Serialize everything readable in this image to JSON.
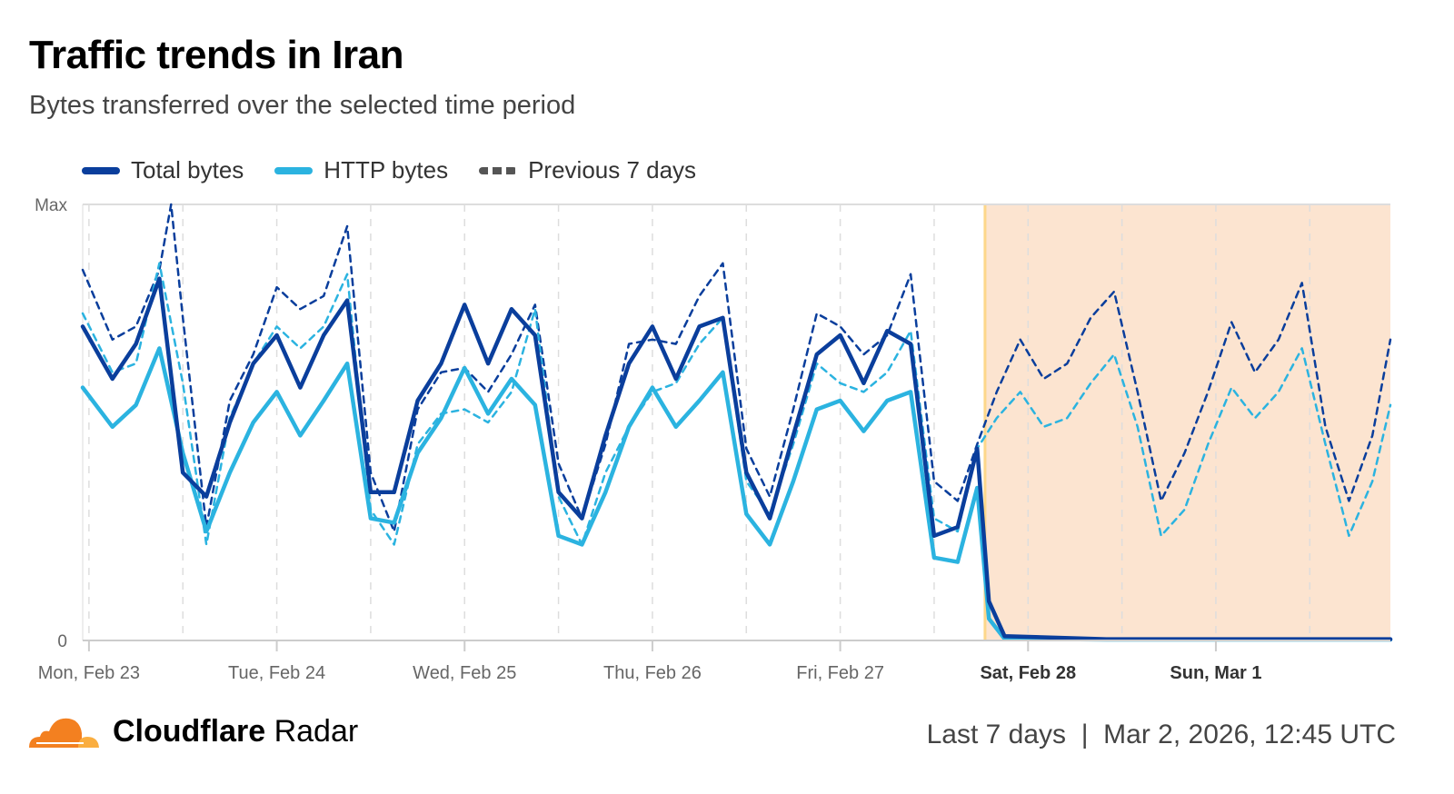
{
  "header": {
    "title": "Traffic trends in Iran",
    "subtitle": "Bytes transferred over the selected time period"
  },
  "footer": {
    "brand_bold": "Cloudflare",
    "brand_light": "Radar",
    "range": "Last 7 days",
    "separator": "|",
    "timestamp": "Mar 2, 2026, 12:45 UTC"
  },
  "chart_data": {
    "type": "line",
    "title": "Traffic trends in Iran",
    "x_unit": "hours since Mon, Feb 23 00:00 UTC",
    "xlim": [
      -0.8,
      166.3
    ],
    "ylim": [
      0,
      100
    ],
    "y_ticks": [
      {
        "value": 0,
        "label": "0"
      },
      {
        "value": 100,
        "label": "Max"
      }
    ],
    "x_ticks": [
      {
        "value": 0,
        "label": "Mon, Feb 23",
        "bold": false
      },
      {
        "value": 24,
        "label": "Tue, Feb 24",
        "bold": false
      },
      {
        "value": 48,
        "label": "Wed, Feb 25",
        "bold": false
      },
      {
        "value": 72,
        "label": "Thu, Feb 26",
        "bold": false
      },
      {
        "value": 96,
        "label": "Fri, Feb 27",
        "bold": false
      },
      {
        "value": 120,
        "label": "Sat, Feb 28",
        "bold": true
      },
      {
        "value": 144,
        "label": "Sun, Mar 1",
        "bold": true
      }
    ],
    "highlight": {
      "from": 114.5,
      "to": 166.3,
      "color": "#fce4d0",
      "edge": "#fdd78a"
    },
    "legend": "top-left",
    "series": [
      {
        "name": "Previous 7 days",
        "legend": true,
        "color": "#0a3e9c",
        "dashed": true,
        "width": 2.5,
        "points": [
          [
            -0.8,
            85
          ],
          [
            3,
            69
          ],
          [
            6,
            72
          ],
          [
            9,
            85
          ],
          [
            10.5,
            100
          ],
          [
            12,
            74
          ],
          [
            15,
            26
          ],
          [
            18,
            55
          ],
          [
            21,
            65.6
          ],
          [
            24,
            81
          ],
          [
            27,
            76
          ],
          [
            30,
            79
          ],
          [
            33,
            95
          ],
          [
            36,
            38.5
          ],
          [
            39,
            25
          ],
          [
            42,
            53
          ],
          [
            45,
            61.5
          ],
          [
            48,
            62.5
          ],
          [
            51,
            57
          ],
          [
            54,
            65.6
          ],
          [
            57,
            77
          ],
          [
            60,
            40.6
          ],
          [
            63,
            28
          ],
          [
            66,
            45
          ],
          [
            69,
            68
          ],
          [
            72,
            69
          ],
          [
            75,
            68
          ],
          [
            78,
            79
          ],
          [
            81,
            86.5
          ],
          [
            84,
            44
          ],
          [
            87,
            33
          ],
          [
            90,
            53
          ],
          [
            93,
            75
          ],
          [
            96,
            72
          ],
          [
            99,
            65.6
          ],
          [
            102,
            70
          ],
          [
            105,
            84
          ],
          [
            108,
            36.5
          ],
          [
            111,
            32
          ],
          [
            113.5,
            45
          ],
          [
            116,
            57
          ],
          [
            119,
            69
          ],
          [
            122,
            60
          ],
          [
            125,
            63.5
          ],
          [
            128,
            74
          ],
          [
            131,
            80
          ],
          [
            134,
            57
          ],
          [
            137,
            32
          ],
          [
            140,
            43
          ],
          [
            143,
            57
          ],
          [
            146,
            73
          ],
          [
            149,
            61.5
          ],
          [
            152,
            69
          ],
          [
            155,
            82
          ],
          [
            158,
            49
          ],
          [
            161,
            32
          ],
          [
            164,
            47
          ],
          [
            166.3,
            69
          ]
        ]
      },
      {
        "name": "Previous 7 days (HTTP)",
        "legend": false,
        "color": "#2bb3e0",
        "dashed": true,
        "width": 2.5,
        "points": [
          [
            -0.8,
            75
          ],
          [
            3,
            61.5
          ],
          [
            6,
            63.5
          ],
          [
            9,
            86.5
          ],
          [
            12,
            59
          ],
          [
            15,
            22
          ],
          [
            18,
            51
          ],
          [
            21,
            63.5
          ],
          [
            24,
            72
          ],
          [
            27,
            67
          ],
          [
            30,
            72
          ],
          [
            33,
            84
          ],
          [
            36,
            30
          ],
          [
            39,
            22
          ],
          [
            42,
            45
          ],
          [
            45,
            52
          ],
          [
            48,
            53
          ],
          [
            51,
            50
          ],
          [
            54,
            57
          ],
          [
            57,
            76
          ],
          [
            60,
            33
          ],
          [
            63,
            22
          ],
          [
            66,
            38.5
          ],
          [
            69,
            49
          ],
          [
            72,
            57
          ],
          [
            75,
            59
          ],
          [
            78,
            68
          ],
          [
            81,
            74
          ],
          [
            84,
            36.5
          ],
          [
            87,
            29
          ],
          [
            90,
            45
          ],
          [
            93,
            63.5
          ],
          [
            96,
            59
          ],
          [
            99,
            57
          ],
          [
            102,
            61.5
          ],
          [
            105,
            71
          ],
          [
            108,
            28
          ],
          [
            111,
            25
          ],
          [
            113.5,
            44
          ],
          [
            116,
            51
          ],
          [
            119,
            57
          ],
          [
            122,
            49
          ],
          [
            125,
            51
          ],
          [
            128,
            59
          ],
          [
            131,
            65.6
          ],
          [
            134,
            49
          ],
          [
            137,
            24
          ],
          [
            140,
            30
          ],
          [
            143,
            45
          ],
          [
            146,
            58
          ],
          [
            149,
            51
          ],
          [
            152,
            57
          ],
          [
            155,
            67
          ],
          [
            158,
            45
          ],
          [
            161,
            24
          ],
          [
            164,
            36.5
          ],
          [
            166.3,
            54
          ]
        ]
      },
      {
        "name": "HTTP bytes",
        "legend": true,
        "color": "#2bb3e0",
        "dashed": false,
        "width": 4.5,
        "points": [
          [
            -0.8,
            58
          ],
          [
            3,
            49
          ],
          [
            6,
            54
          ],
          [
            9,
            67
          ],
          [
            12,
            43
          ],
          [
            15,
            25
          ],
          [
            18,
            38.5
          ],
          [
            21,
            50
          ],
          [
            24,
            57
          ],
          [
            27,
            47
          ],
          [
            30,
            55
          ],
          [
            33,
            63.5
          ],
          [
            36,
            28
          ],
          [
            39,
            27
          ],
          [
            42,
            43
          ],
          [
            45,
            51
          ],
          [
            48,
            62.5
          ],
          [
            51,
            52
          ],
          [
            54,
            60
          ],
          [
            57,
            54
          ],
          [
            60,
            24
          ],
          [
            63,
            22
          ],
          [
            66,
            34
          ],
          [
            69,
            49
          ],
          [
            72,
            58
          ],
          [
            75,
            49
          ],
          [
            78,
            55
          ],
          [
            81,
            61.5
          ],
          [
            84,
            29
          ],
          [
            87,
            22
          ],
          [
            90,
            36.5
          ],
          [
            93,
            53
          ],
          [
            96,
            55
          ],
          [
            99,
            48
          ],
          [
            102,
            55
          ],
          [
            105,
            57
          ],
          [
            108,
            19
          ],
          [
            111,
            18
          ],
          [
            113.5,
            35
          ],
          [
            115,
            5
          ],
          [
            117,
            0.4
          ],
          [
            130,
            0.2
          ],
          [
            166.3,
            0.2
          ]
        ]
      },
      {
        "name": "Total bytes",
        "legend": true,
        "color": "#0a3e9c",
        "dashed": false,
        "width": 4.5,
        "points": [
          [
            -0.8,
            72
          ],
          [
            3,
            60
          ],
          [
            6,
            68
          ],
          [
            9,
            83
          ],
          [
            12,
            38.5
          ],
          [
            15,
            33
          ],
          [
            18,
            50
          ],
          [
            21,
            63.5
          ],
          [
            24,
            70
          ],
          [
            27,
            58
          ],
          [
            30,
            70
          ],
          [
            33,
            78
          ],
          [
            36,
            34
          ],
          [
            39,
            34
          ],
          [
            42,
            55
          ],
          [
            45,
            63.5
          ],
          [
            48,
            77
          ],
          [
            51,
            63.5
          ],
          [
            54,
            76
          ],
          [
            57,
            70
          ],
          [
            60,
            34
          ],
          [
            63,
            28
          ],
          [
            66,
            47
          ],
          [
            69,
            63.5
          ],
          [
            72,
            72
          ],
          [
            75,
            60
          ],
          [
            78,
            72
          ],
          [
            81,
            74
          ],
          [
            84,
            38.5
          ],
          [
            87,
            28
          ],
          [
            90,
            47
          ],
          [
            93,
            65.6
          ],
          [
            96,
            70
          ],
          [
            99,
            59
          ],
          [
            102,
            71
          ],
          [
            105,
            68
          ],
          [
            108,
            24
          ],
          [
            111,
            26
          ],
          [
            113.5,
            44
          ],
          [
            115,
            9
          ],
          [
            117,
            1
          ],
          [
            130,
            0.3
          ],
          [
            166.3,
            0.3
          ]
        ]
      }
    ]
  }
}
